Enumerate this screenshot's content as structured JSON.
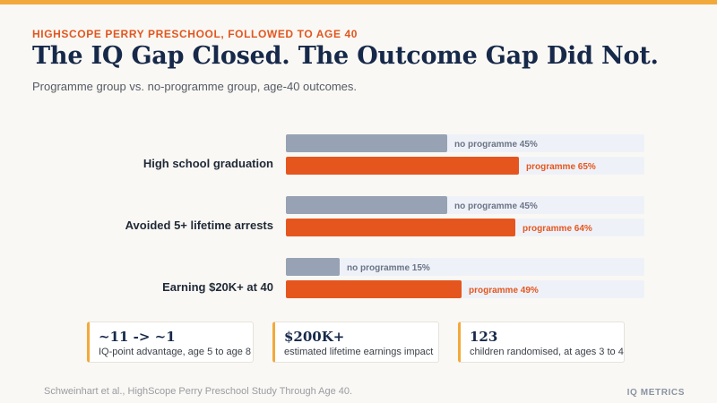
{
  "header": {
    "kicker": "HIGHSCOPE PERRY PRESCHOOL, FOLLOWED TO AGE 40",
    "title": "The IQ Gap Closed. The Outcome Gap Did Not.",
    "subtitle": "Programme group vs. no-programme group, age-40 outcomes."
  },
  "chart_data": {
    "type": "bar",
    "orientation": "horizontal",
    "categories": [
      "High school graduation",
      "Avoided 5+ lifetime arrests",
      "Earning $20K+ at 40"
    ],
    "series": [
      {
        "name": "no programme",
        "values": [
          45,
          45,
          15
        ],
        "color": "#97a3b4"
      },
      {
        "name": "programme",
        "values": [
          65,
          64,
          49
        ],
        "color": "#e5561f"
      }
    ],
    "data_labels": [
      [
        "no programme 45%",
        "programme 65%"
      ],
      [
        "no programme 45%",
        "programme 64%"
      ],
      [
        "no programme 15%",
        "programme 49%"
      ]
    ],
    "xlim": [
      0,
      100
    ],
    "track_color": "#eef2f8",
    "grid": false
  },
  "stats": [
    {
      "value": "~11 -> ~1",
      "label": "IQ-point advantage, age 5 to age 8"
    },
    {
      "value": "$200K+",
      "label": "estimated lifetime earnings impact"
    },
    {
      "value": "123",
      "label": "children randomised, at ages 3 to 4"
    }
  ],
  "footer": {
    "source": "Schweinhart et al., HighScope Perry Preschool Study Through Age 40.",
    "brand": "IQ METRICS"
  },
  "colors": {
    "accent": "#f2a93b",
    "title": "#16294a",
    "kicker": "#e2561f"
  }
}
